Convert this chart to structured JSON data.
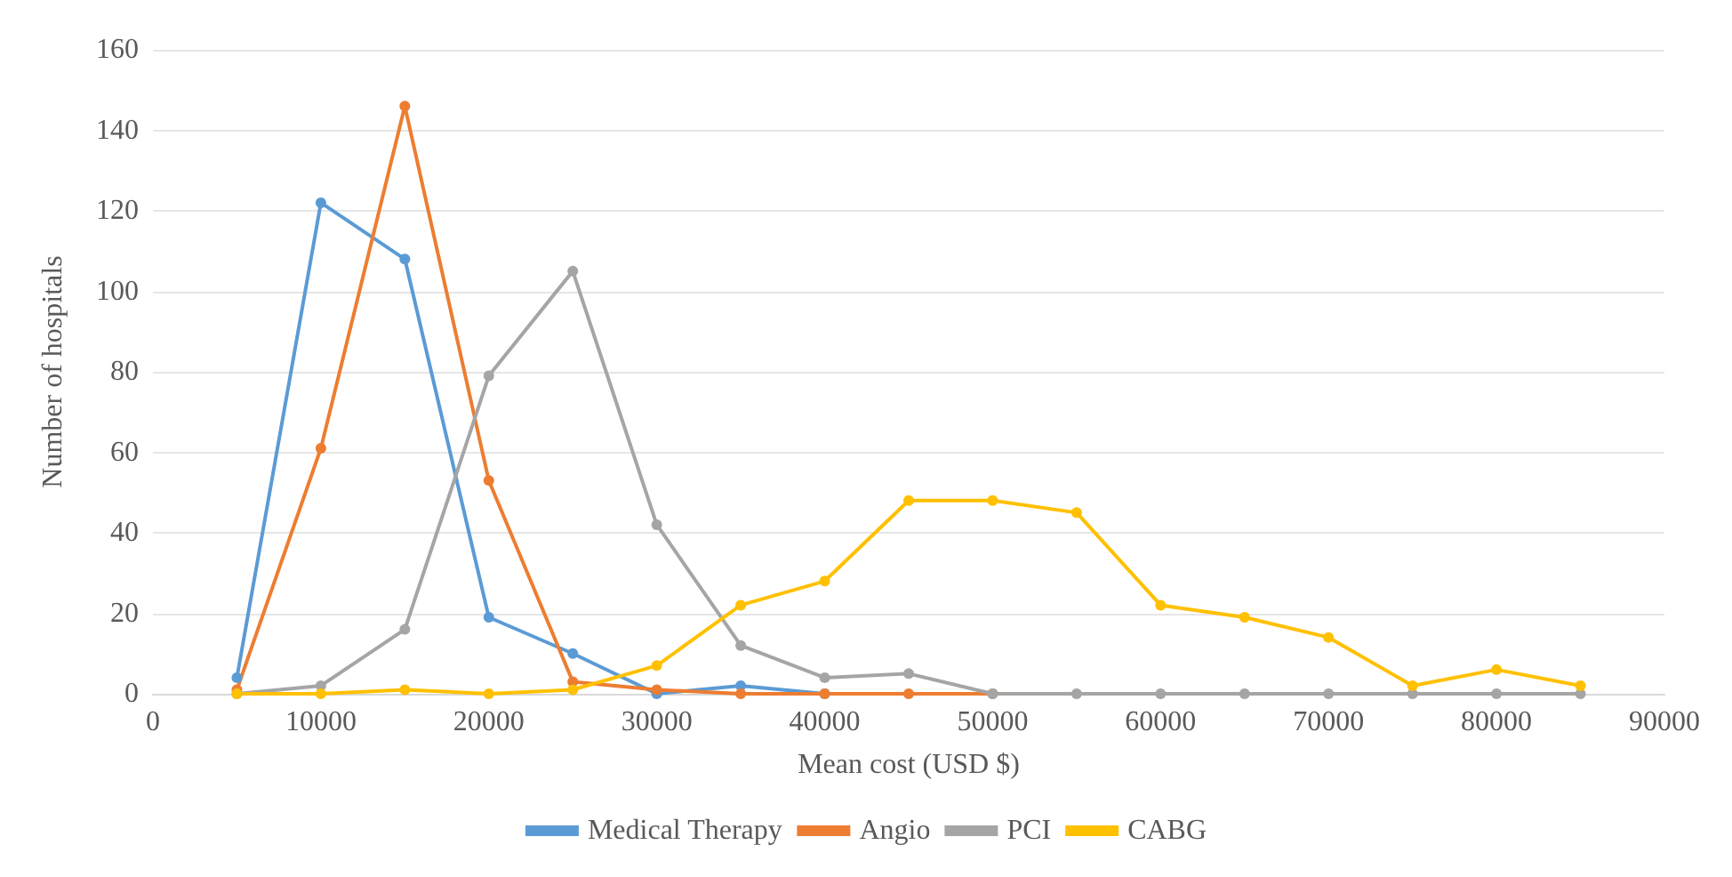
{
  "chart_data": {
    "type": "line",
    "xlabel": "Mean cost (USD $)",
    "ylabel": "Number of hospitals",
    "xlim": [
      0,
      90000
    ],
    "xticks": [
      0,
      10000,
      20000,
      30000,
      40000,
      50000,
      60000,
      70000,
      80000,
      90000
    ],
    "ylim": [
      0,
      160
    ],
    "yticks": [
      0,
      20,
      40,
      60,
      80,
      100,
      120,
      140,
      160
    ],
    "grid": "y",
    "legend": "bottom",
    "marker": "circle",
    "line_style": "solid",
    "series": [
      {
        "name": "Medical Therapy",
        "color": "#5b9bd5",
        "x": [
          5000,
          10000,
          15000,
          20000,
          25000,
          30000,
          35000,
          40000
        ],
        "values": [
          4,
          122,
          108,
          19,
          10,
          0,
          2,
          0
        ]
      },
      {
        "name": "Angio",
        "color": "#ed7d31",
        "x": [
          5000,
          10000,
          15000,
          20000,
          25000,
          30000,
          35000,
          40000,
          45000,
          50000
        ],
        "values": [
          1,
          61,
          146,
          53,
          3,
          1,
          0,
          0,
          0,
          0
        ]
      },
      {
        "name": "PCI",
        "color": "#a5a5a5",
        "x": [
          5000,
          10000,
          15000,
          20000,
          25000,
          30000,
          35000,
          40000,
          45000,
          50000,
          55000,
          60000,
          65000,
          70000,
          75000,
          80000,
          85000
        ],
        "values": [
          0,
          2,
          16,
          79,
          105,
          42,
          12,
          4,
          5,
          0,
          0,
          0,
          0,
          0,
          0,
          0,
          0
        ]
      },
      {
        "name": "CABG",
        "color": "#ffc000",
        "x": [
          5000,
          10000,
          15000,
          20000,
          25000,
          30000,
          35000,
          40000,
          45000,
          50000,
          55000,
          60000,
          65000,
          70000,
          75000,
          80000,
          85000
        ],
        "values": [
          0,
          0,
          1,
          0,
          1,
          7,
          22,
          28,
          48,
          48,
          45,
          22,
          19,
          14,
          2,
          6,
          2
        ]
      }
    ]
  }
}
